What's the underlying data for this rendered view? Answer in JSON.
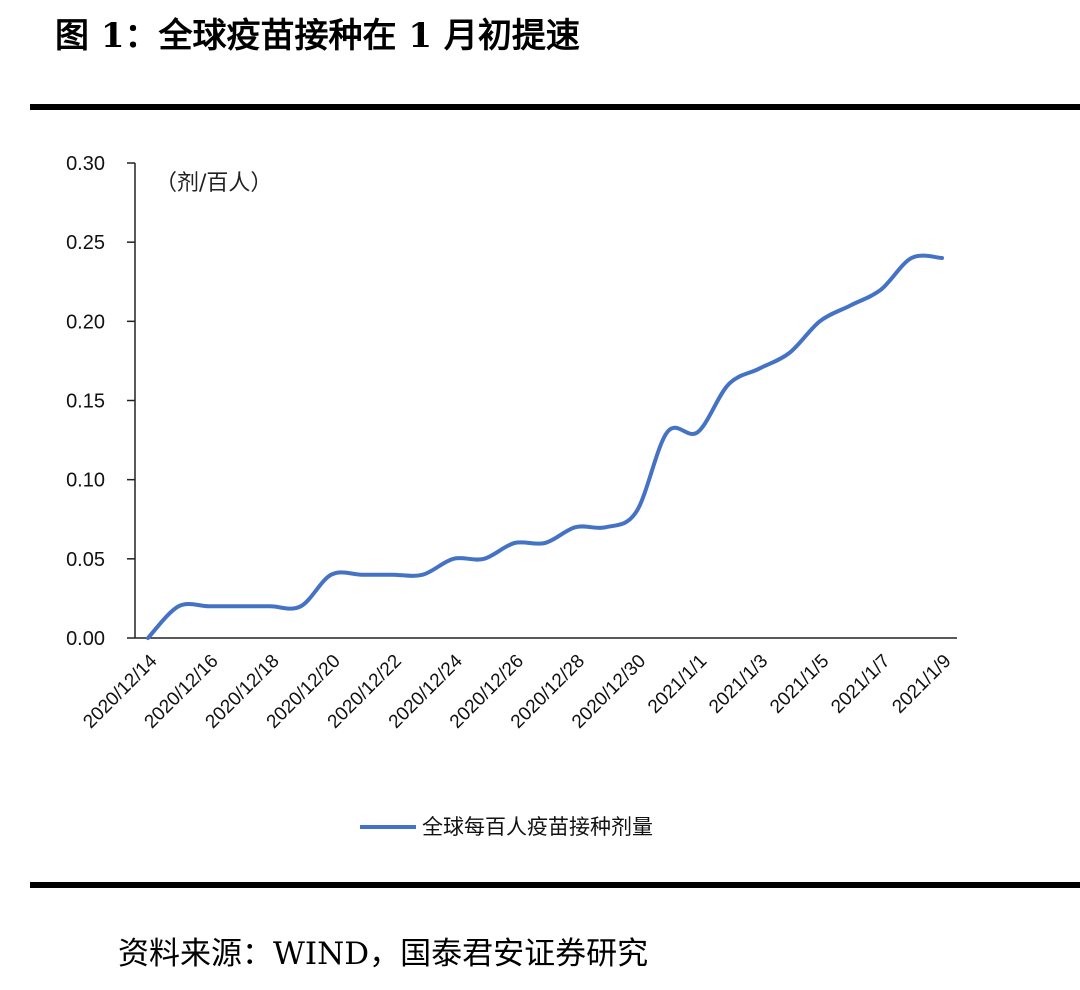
{
  "figure": {
    "title": "图 1：全球疫苗接种在 1 月初提速",
    "source": "资料来源：WIND，国泰君安证券研究"
  },
  "chart_data": {
    "type": "line",
    "unit_label": "（剂/百人）",
    "ylim": [
      0,
      0.3
    ],
    "y_ticks": [
      "0.00",
      "0.05",
      "0.10",
      "0.15",
      "0.20",
      "0.25",
      "0.30"
    ],
    "x_tick_labels": [
      "2020/12/14",
      "2020/12/16",
      "2020/12/18",
      "2020/12/20",
      "2020/12/22",
      "2020/12/24",
      "2020/12/26",
      "2020/12/28",
      "2020/12/30",
      "2021/1/1",
      "2021/1/3",
      "2021/1/5",
      "2021/1/7",
      "2021/1/9"
    ],
    "x": [
      "2020/12/14",
      "2020/12/15",
      "2020/12/16",
      "2020/12/17",
      "2020/12/18",
      "2020/12/19",
      "2020/12/20",
      "2020/12/21",
      "2020/12/22",
      "2020/12/23",
      "2020/12/24",
      "2020/12/25",
      "2020/12/26",
      "2020/12/27",
      "2020/12/28",
      "2020/12/29",
      "2020/12/30",
      "2020/12/31",
      "2021/1/1",
      "2021/1/2",
      "2021/1/3",
      "2021/1/4",
      "2021/1/5",
      "2021/1/6",
      "2021/1/7",
      "2021/1/8",
      "2021/1/9"
    ],
    "series": [
      {
        "name": "全球每百人疫苗接种剂量",
        "color": "#4472c4",
        "values": [
          0.0,
          0.02,
          0.02,
          0.02,
          0.02,
          0.02,
          0.04,
          0.04,
          0.04,
          0.04,
          0.05,
          0.05,
          0.06,
          0.06,
          0.07,
          0.07,
          0.08,
          0.13,
          0.13,
          0.16,
          0.17,
          0.18,
          0.2,
          0.21,
          0.22,
          0.24,
          0.24
        ]
      }
    ],
    "legend_position": "bottom",
    "grid": false
  }
}
